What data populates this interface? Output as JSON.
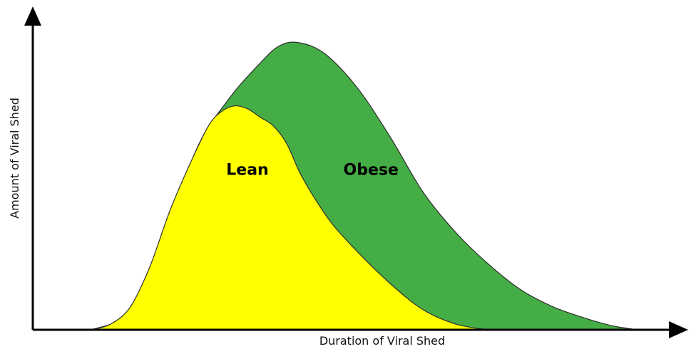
{
  "chart_data": {
    "type": "area",
    "title": "",
    "xlabel": "Duration of Viral Shed",
    "ylabel": "Amount of Viral Shed",
    "x_ticks": "none",
    "y_ticks": "none",
    "grid": false,
    "legend": "none (series labelled inside the areas)",
    "series": [
      {
        "name": "Obese",
        "color": "#45ad45",
        "stroke": "#2f2f2f",
        "x": [
          0.09,
          0.15,
          0.2,
          0.25,
          0.3,
          0.35,
          0.38,
          0.41,
          0.45,
          0.5,
          0.55,
          0.6,
          0.65,
          0.7,
          0.75,
          0.8,
          0.85,
          0.88,
          0.9,
          0.93
        ],
        "values": [
          0.0,
          0.06,
          0.27,
          0.62,
          0.8,
          0.93,
          0.99,
          1.0,
          0.96,
          0.84,
          0.67,
          0.48,
          0.34,
          0.23,
          0.14,
          0.08,
          0.04,
          0.02,
          0.01,
          0.0
        ]
      },
      {
        "name": "Lean",
        "color": "#ffff00",
        "stroke": "#2f2f2f",
        "x": [
          0.09,
          0.12,
          0.15,
          0.18,
          0.21,
          0.24,
          0.27,
          0.29,
          0.31,
          0.33,
          0.35,
          0.37,
          0.39,
          0.41,
          0.43,
          0.46,
          0.5,
          0.55,
          0.6,
          0.65,
          0.7
        ],
        "values": [
          0.0,
          0.02,
          0.08,
          0.22,
          0.41,
          0.57,
          0.71,
          0.76,
          0.78,
          0.77,
          0.74,
          0.71,
          0.65,
          0.55,
          0.47,
          0.37,
          0.27,
          0.16,
          0.07,
          0.02,
          0.0
        ]
      }
    ]
  }
}
